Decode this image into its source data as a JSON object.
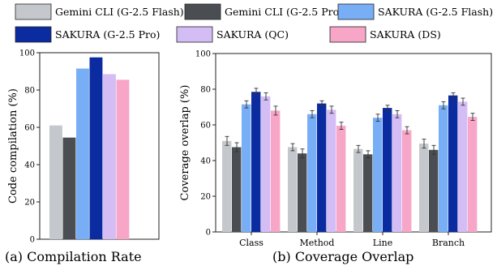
{
  "legend": {
    "placement": "top",
    "entries": [
      {
        "label": "Gemini CLI (G-2.5 Flash)",
        "color": "#c4c8cc"
      },
      {
        "label": "Gemini CLI (G-2.5 Pro)",
        "color": "#4a4e52"
      },
      {
        "label": "SAKURA (G-2.5 Flash)",
        "color": "#78aef5"
      },
      {
        "label": "SAKURA (G-2.5 Pro)",
        "color": "#0b2ba0"
      },
      {
        "label": "SAKURA (QC)",
        "color": "#d4bdf5"
      },
      {
        "label": "SAKURA (DS)",
        "color": "#f8a6c8"
      }
    ]
  },
  "captions": {
    "left": "(a) Compilation Rate",
    "right": "(b) Coverage Overlap"
  },
  "chart_data": [
    {
      "type": "bar",
      "title": "",
      "xlabel": "",
      "ylabel": "Code compilation (%)",
      "ylim": [
        0,
        100
      ],
      "yticks": [
        "0",
        "20",
        "40",
        "60",
        "80",
        "100"
      ],
      "grid": false,
      "categories": [
        ""
      ],
      "series": [
        {
          "name": "Gemini CLI (G-2.5 Flash)",
          "values": [
            61
          ]
        },
        {
          "name": "Gemini CLI (G-2.5 Pro)",
          "values": [
            54.5
          ]
        },
        {
          "name": "SAKURA (G-2.5 Flash)",
          "values": [
            91.5
          ]
        },
        {
          "name": "SAKURA (G-2.5 Pro)",
          "values": [
            97.5
          ]
        },
        {
          "name": "SAKURA (QC)",
          "values": [
            88.5
          ]
        },
        {
          "name": "SAKURA (DS)",
          "values": [
            85.5
          ]
        }
      ]
    },
    {
      "type": "bar",
      "title": "",
      "xlabel": "",
      "ylabel": "Coverage overlap (%)",
      "ylim": [
        0,
        100
      ],
      "yticks": [
        "0",
        "20",
        "40",
        "60",
        "80",
        "100"
      ],
      "grid": false,
      "categories": [
        "Class",
        "Method",
        "Line",
        "Branch"
      ],
      "series": [
        {
          "name": "Gemini CLI (G-2.5 Flash)",
          "values": [
            51,
            47.5,
            46.5,
            49.5
          ],
          "errors": [
            2.5,
            2,
            2,
            2.5
          ]
        },
        {
          "name": "Gemini CLI (G-2.5 Pro)",
          "values": [
            47.5,
            44,
            43.5,
            46
          ],
          "errors": [
            2.5,
            2.5,
            2,
            2.5
          ]
        },
        {
          "name": "SAKURA (G-2.5 Flash)",
          "values": [
            71.5,
            66,
            64,
            71
          ],
          "errors": [
            2,
            2,
            2,
            2
          ]
        },
        {
          "name": "SAKURA (G-2.5 Pro)",
          "values": [
            78.5,
            72,
            69.5,
            76.5
          ],
          "errors": [
            2,
            1.5,
            1.5,
            1.5
          ]
        },
        {
          "name": "SAKURA (QC)",
          "values": [
            76,
            68.5,
            66,
            73
          ],
          "errors": [
            2,
            2,
            2,
            2
          ]
        },
        {
          "name": "SAKURA (DS)",
          "values": [
            68,
            59.5,
            57,
            64.5
          ],
          "errors": [
            2.5,
            2,
            2,
            2
          ]
        }
      ]
    }
  ]
}
